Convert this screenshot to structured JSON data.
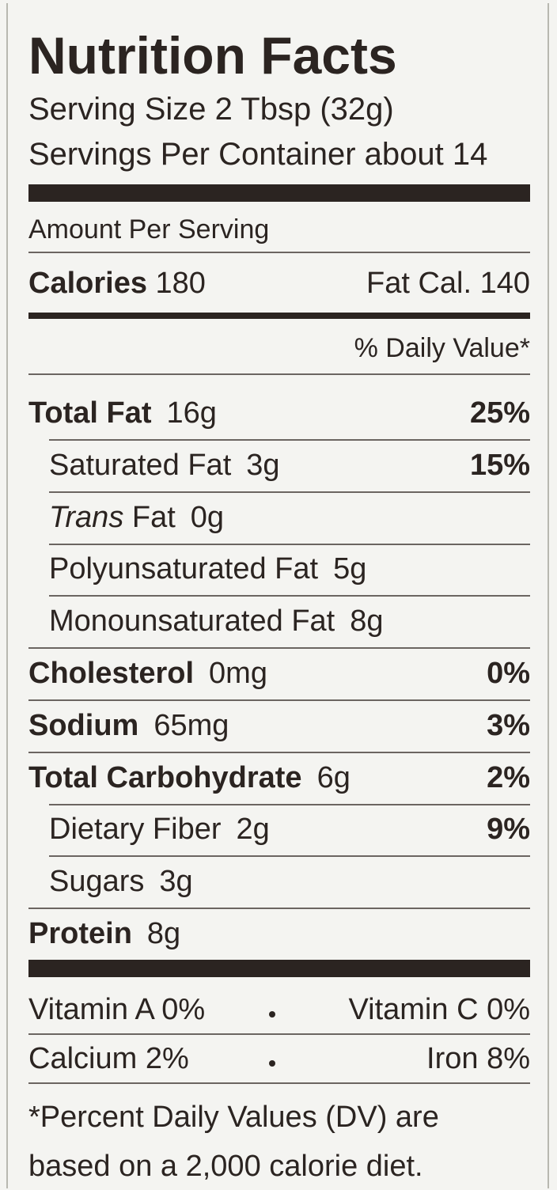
{
  "title": "Nutrition Facts",
  "serving_size": "Serving Size 2 Tbsp (32g)",
  "servings": "Servings Per Container about 14",
  "amount_per_serving": "Amount Per Serving",
  "calories": {
    "label": "Calories",
    "value": "180",
    "fat_label": "Fat Cal.",
    "fat_value": "140"
  },
  "daily_value_header": "% Daily Value*",
  "nutrients": [
    {
      "label": "Total Fat",
      "amount": "16g",
      "dv": "25%",
      "bold": true,
      "indent": false
    },
    {
      "label": "Saturated Fat",
      "amount": "3g",
      "dv": "15%",
      "bold": false,
      "indent": true
    },
    {
      "label_italic": "Trans",
      "label": "Fat",
      "amount": "0g",
      "bold": false,
      "indent": true
    },
    {
      "label": "Polyunsaturated Fat",
      "amount": "5g",
      "bold": false,
      "indent": true
    },
    {
      "label": "Monounsaturated Fat",
      "amount": "8g",
      "bold": false,
      "indent": true
    },
    {
      "label": "Cholesterol",
      "amount": "0mg",
      "dv": "0%",
      "bold": true,
      "indent": false
    },
    {
      "label": "Sodium",
      "amount": "65mg",
      "dv": "3%",
      "bold": true,
      "indent": false
    },
    {
      "label": "Total Carbohydrate",
      "amount": "6g",
      "dv": "2%",
      "bold": true,
      "indent": false
    },
    {
      "label": "Dietary Fiber",
      "amount": "2g",
      "dv": "9%",
      "bold": false,
      "indent": true
    },
    {
      "label": "Sugars",
      "amount": "3g",
      "bold": false,
      "indent": true
    },
    {
      "label": "Protein",
      "amount": "8g",
      "bold": true,
      "indent": false
    }
  ],
  "vitamins": [
    [
      {
        "label": "Vitamin A",
        "value": "0%"
      },
      {
        "label": "Vitamin C",
        "value": "0%"
      }
    ],
    [
      {
        "label": "Calcium",
        "value": "2%"
      },
      {
        "label": "Iron",
        "value": "8%"
      }
    ]
  ],
  "footnote": [
    "*Percent Daily Values (DV) are",
    "based on a 2,000 calorie diet."
  ]
}
